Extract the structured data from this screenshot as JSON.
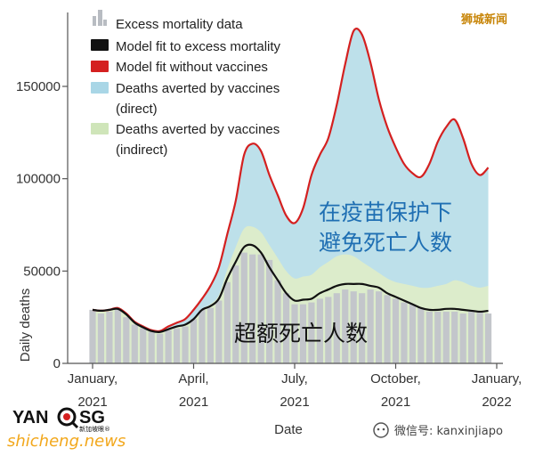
{
  "chart_data": {
    "type": "area",
    "xlabel": "Date",
    "ylabel": "Daily deaths",
    "ylim": [
      0,
      190000
    ],
    "yticks": [
      0,
      50000,
      100000,
      150000
    ],
    "ytick_labels": [
      "0",
      "50000",
      "100000",
      "150000"
    ],
    "xticks": [
      {
        "month": 0,
        "line1": "January,",
        "line2": "2021"
      },
      {
        "month": 3,
        "line1": "April,",
        "line2": "2021"
      },
      {
        "month": 6,
        "line1": "July,",
        "line2": "2021"
      },
      {
        "month": 9,
        "line1": "October,",
        "line2": "2021"
      },
      {
        "month": 12,
        "line1": "January,",
        "line2": "2022"
      }
    ],
    "x_months": [
      0,
      0.25,
      0.5,
      0.75,
      1,
      1.25,
      1.5,
      1.75,
      2,
      2.25,
      2.5,
      2.75,
      3,
      3.25,
      3.5,
      3.75,
      4,
      4.25,
      4.5,
      4.75,
      5,
      5.25,
      5.5,
      5.75,
      6,
      6.25,
      6.5,
      6.75,
      7,
      7.25,
      7.5,
      7.75,
      8,
      8.25,
      8.5,
      8.75,
      9,
      9.25,
      9.5,
      9.75,
      10,
      10.25,
      10.5,
      10.75,
      11,
      11.25,
      11.5,
      11.75
    ],
    "series": [
      {
        "name": "Excess mortality data",
        "kind": "bars",
        "color": "#c3c6cb",
        "values": [
          29000,
          27000,
          28000,
          29000,
          25000,
          21000,
          19000,
          17000,
          16000,
          18000,
          19000,
          20000,
          24000,
          29000,
          30000,
          34000,
          44000,
          53000,
          60000,
          59000,
          59000,
          56000,
          45000,
          38000,
          32000,
          32000,
          33000,
          35000,
          36000,
          38000,
          40000,
          39000,
          38000,
          40000,
          39000,
          37000,
          35000,
          33000,
          32000,
          30000,
          28000,
          28000,
          28000,
          28000,
          27000,
          28000,
          28000,
          27000
        ]
      },
      {
        "name": "Model fit to excess mortality",
        "kind": "line",
        "color": "#111111",
        "values": [
          29000,
          28500,
          29000,
          29500,
          26500,
          22000,
          19500,
          17500,
          17000,
          18500,
          20000,
          21000,
          24000,
          29000,
          31000,
          35000,
          46000,
          55000,
          63000,
          64000,
          60000,
          52000,
          45000,
          38000,
          34000,
          34500,
          35000,
          38000,
          40000,
          42000,
          43000,
          43000,
          43000,
          42000,
          41000,
          38000,
          36000,
          34000,
          32000,
          30000,
          29000,
          29000,
          29500,
          29500,
          29000,
          28500,
          28000,
          28500
        ]
      },
      {
        "name": "Model fit without vaccines",
        "kind": "line",
        "color": "#d42020",
        "values": [
          29000,
          28500,
          29000,
          30000,
          27000,
          22500,
          20000,
          18000,
          17500,
          20000,
          22000,
          24000,
          29000,
          35000,
          42000,
          52000,
          70000,
          88000,
          113000,
          119000,
          115000,
          102000,
          91000,
          80000,
          76000,
          84000,
          102000,
          113000,
          122000,
          140000,
          162000,
          180000,
          178000,
          163000,
          143000,
          128000,
          117000,
          108000,
          103000,
          101000,
          108000,
          120000,
          128000,
          132000,
          122000,
          108000,
          102000,
          106000
        ]
      },
      {
        "name": "Deaths averted by vaccines (direct)",
        "kind": "area",
        "color": "#bde0ea"
      },
      {
        "name": "Deaths averted by vaccines (indirect)",
        "kind": "area",
        "color": "#dceccb",
        "values": [
          29000,
          28500,
          29000,
          29500,
          26500,
          22000,
          19500,
          17500,
          17000,
          18500,
          20000,
          21000,
          24000,
          29500,
          32000,
          37000,
          51000,
          63000,
          73000,
          74000,
          71000,
          64000,
          57000,
          50000,
          46000,
          47000,
          48000,
          52000,
          55000,
          58000,
          59000,
          58000,
          55000,
          52000,
          49000,
          46000,
          44000,
          43000,
          42000,
          41000,
          41000,
          42000,
          43000,
          45000,
          44000,
          42000,
          41000,
          42000
        ]
      }
    ]
  },
  "legend": {
    "items": [
      {
        "label": "Excess mortality data",
        "icon": "bars-icon"
      },
      {
        "label": "Model fit to excess mortality",
        "icon": "black-swatch",
        "color": "#111111"
      },
      {
        "label": "Model fit without vaccines",
        "icon": "red-swatch",
        "color": "#d42020"
      },
      {
        "label": "Deaths averted by vaccines",
        "label2": "(direct)",
        "icon": "blue-swatch",
        "color": "#bde0ea"
      },
      {
        "label": "Deaths averted by vaccines",
        "label2": "(indirect)",
        "icon": "green-swatch",
        "color": "#dceccb"
      }
    ]
  },
  "annotations": {
    "averted_line1": "在疫苗保护下",
    "averted_line2": "避免死亡人数",
    "excess": "超额死亡人数"
  },
  "watermarks": {
    "brand_top": "狮城新闻",
    "wechat": "微信号: kanxinjiapo",
    "logo_main": "YAN",
    "logo_sg": "SG",
    "logo_small": "新加坡眼®",
    "logo_sub": "shicheng.news"
  }
}
